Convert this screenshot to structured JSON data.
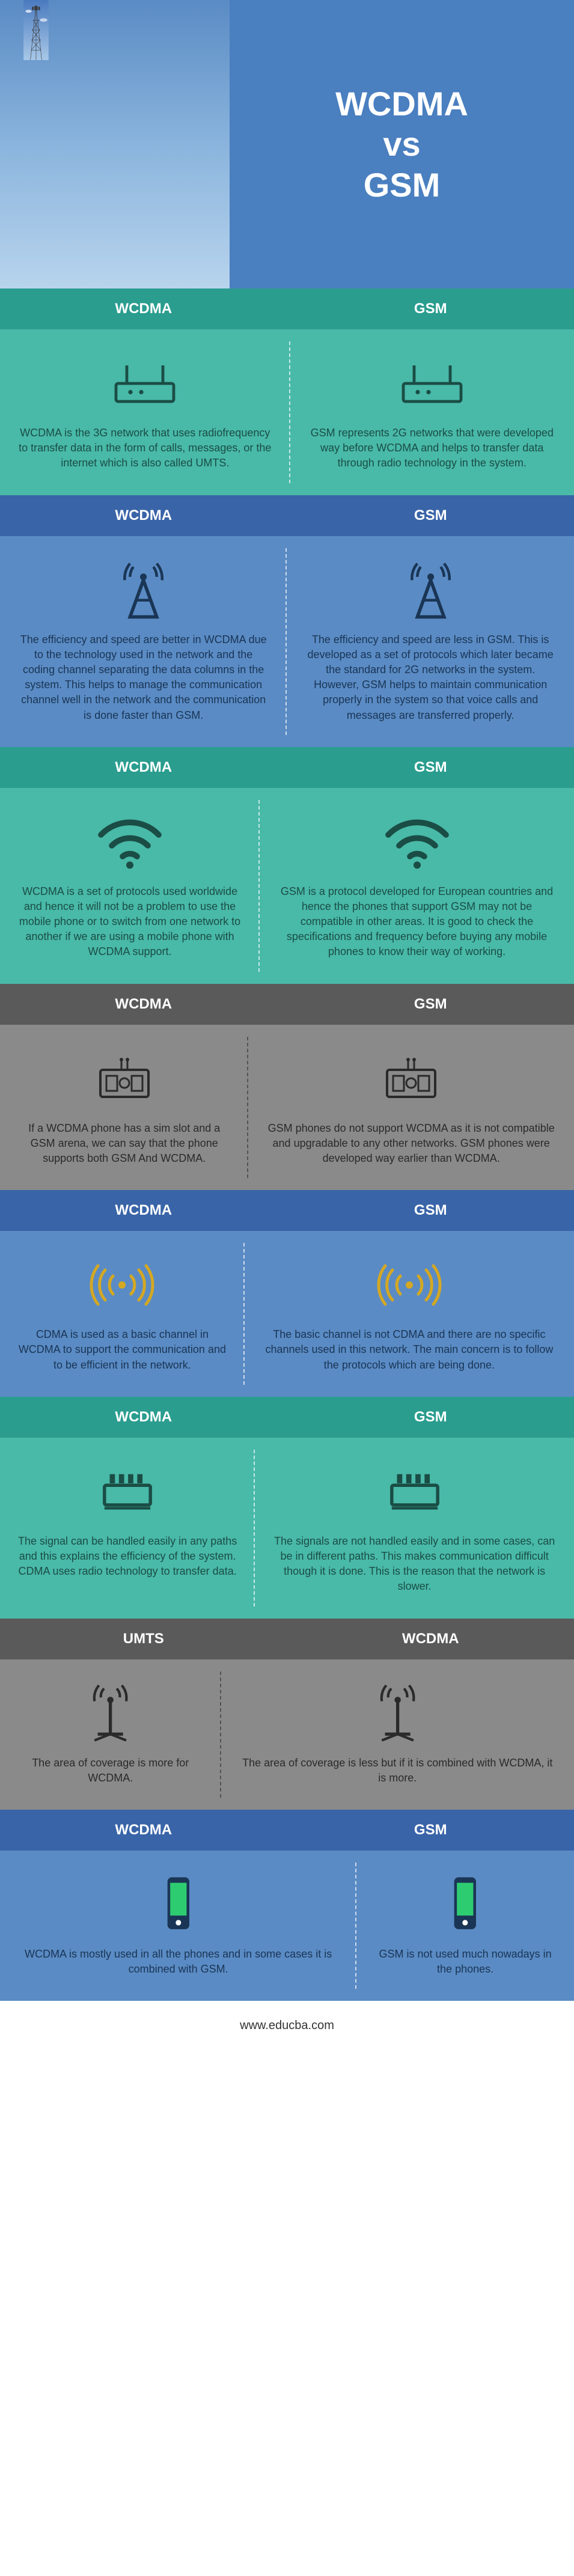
{
  "title": "WCDMA\nvs\nGSM",
  "footer": "www.educba.com",
  "sections": [
    {
      "header_bg_left": "#2a9d8f",
      "header_bg_right": "#2a9d8f",
      "body_bg_left": "#49b9a8",
      "body_bg_right": "#49b9a8",
      "left_label": "WCDMA",
      "right_label": "GSM",
      "icon": "router",
      "icon_color": "#1a4d45",
      "text_color": "#1a4d45",
      "left_text": "WCDMA is the 3G network that uses radiofrequency to transfer data in the form of calls, messages, or the internet which is also called UMTS.",
      "right_text": "GSM represents 2G networks that were developed way before WCDMA and helps to transfer data through radio technology in the system."
    },
    {
      "header_bg_left": "#3964a8",
      "header_bg_right": "#3964a8",
      "body_bg_left": "#5a8bc4",
      "body_bg_right": "#5a8bc4",
      "left_label": "WCDMA",
      "right_label": "GSM",
      "icon": "tower",
      "icon_color": "#1a3555",
      "text_color": "#1a3555",
      "left_text": "The efficiency and speed are better in WCDMA due to the technology used in the network and the coding channel separating the data columns in the system. This helps to manage the communication channel well in the network and the communication is done faster than GSM.",
      "right_text": "The efficiency and speed are less in GSM. This is developed as a set of protocols which later became the standard for 2G networks in the system. However, GSM helps to maintain communication properly in the system so that voice calls and messages are transferred properly."
    },
    {
      "header_bg_left": "#2a9d8f",
      "header_bg_right": "#2a9d8f",
      "body_bg_left": "#49b9a8",
      "body_bg_right": "#49b9a8",
      "left_label": "WCDMA",
      "right_label": "GSM",
      "icon": "wifi",
      "icon_color": "#1a4d45",
      "text_color": "#1a4d45",
      "left_text": "WCDMA is a set of protocols used worldwide and hence it will not be a problem to use the mobile phone or to switch from one network to another if we are using a mobile phone with WCDMA support.",
      "right_text": "GSM is a protocol developed for European countries and hence the phones that support GSM may not be compatible in other areas. It is good to check the specifications and frequency before buying any mobile phones to know their way of working."
    },
    {
      "header_bg_left": "#5a5a5a",
      "header_bg_right": "#5a5a5a",
      "body_bg_left": "#8a8a8a",
      "body_bg_right": "#8a8a8a",
      "left_label": "WCDMA",
      "right_label": "GSM",
      "icon": "sim",
      "icon_color": "#2a2a2a",
      "text_color": "#2a2a2a",
      "left_text": "If a WCDMA phone has a sim slot and a GSM arena, we can say that the phone supports both GSM And WCDMA.",
      "right_text": "GSM phones do not support WCDMA as it is not compatible and upgradable to any other networks. GSM phones were developed way earlier than WCDMA."
    },
    {
      "header_bg_left": "#3964a8",
      "header_bg_right": "#3964a8",
      "body_bg_left": "#5a8bc4",
      "body_bg_right": "#5a8bc4",
      "left_label": "WCDMA",
      "right_label": "GSM",
      "icon": "signal-waves",
      "icon_color": "#d4a823",
      "text_color": "#1a3555",
      "left_text": "CDMA is used as a basic channel in WCDMA to support the communication and to be efficient in the network.",
      "right_text": "The basic channel is not CDMA and there are no specific channels used in this network. The main concern is to follow the protocols which are being done."
    },
    {
      "header_bg_left": "#2a9d8f",
      "header_bg_right": "#2a9d8f",
      "body_bg_left": "#49b9a8",
      "body_bg_right": "#49b9a8",
      "left_label": "WCDMA",
      "right_label": "GSM",
      "icon": "chip",
      "icon_color": "#1a4d45",
      "text_color": "#1a4d45",
      "left_text": "The signal can be handled easily in any paths and this explains the efficiency of the system. CDMA uses radio technology to transfer data.",
      "right_text": "The signals are not handled easily and in some cases, can be in different paths. This makes communication difficult though it is done. This is the reason that the network is slower."
    },
    {
      "header_bg_left": "#5a5a5a",
      "header_bg_right": "#5a5a5a",
      "body_bg_left": "#8a8a8a",
      "body_bg_right": "#8a8a8a",
      "left_label": "UMTS",
      "right_label": "WCDMA",
      "icon": "antenna",
      "icon_color": "#2a2a2a",
      "text_color": "#2a2a2a",
      "left_text": "The area of coverage is more for WCDMA.",
      "right_text": "The area of coverage is less but if it is combined with WCDMA, it is more."
    },
    {
      "header_bg_left": "#3964a8",
      "header_bg_right": "#3964a8",
      "body_bg_left": "#5a8bc4",
      "body_bg_right": "#5a8bc4",
      "left_label": "WCDMA",
      "right_label": "GSM",
      "icon": "phone",
      "icon_color": "#1a3555",
      "phone_accent": "#2ecc71",
      "text_color": "#1a3555",
      "left_text": "WCDMA is mostly used in all the phones and in some cases it is combined with GSM.",
      "right_text": "GSM is not used much nowadays in the phones."
    }
  ]
}
